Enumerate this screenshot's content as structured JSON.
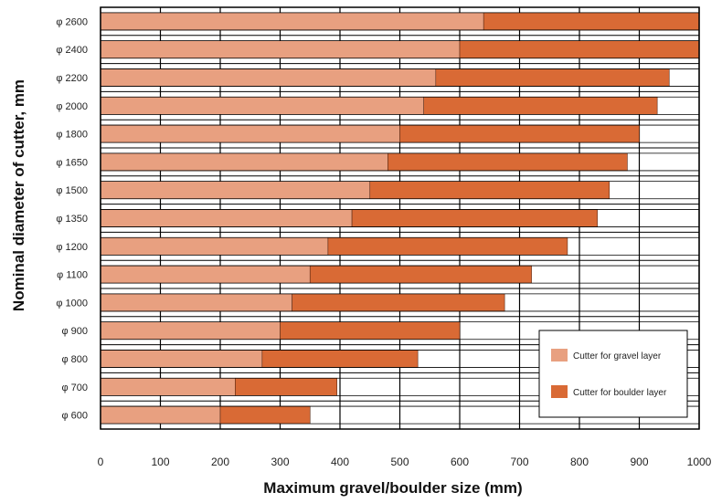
{
  "chart_data": {
    "type": "bar",
    "orientation": "horizontal",
    "stacked": true,
    "title": "",
    "xlabel": "Maximum gravel/boulder size (mm)",
    "ylabel": "Nominal diameter of cutter, mm",
    "xlim": [
      0,
      1000
    ],
    "xticks": [
      "0",
      "100",
      "200",
      "300",
      "400",
      "500",
      "600",
      "700",
      "800",
      "900",
      "1000"
    ],
    "grid": true,
    "legend_position": "bottom-right",
    "categories": [
      "φ 2600",
      "φ 2400",
      "φ 2200",
      "φ 2000",
      "φ 1800",
      "φ 1650",
      "φ 1500",
      "φ 1350",
      "φ 1200",
      "φ 1100",
      "φ 1000",
      "φ 900",
      "φ 800",
      "φ 700",
      "φ 600"
    ],
    "series": [
      {
        "name": "Cutter for gravel layer",
        "color": "#e8a080",
        "values": [
          640,
          600,
          560,
          540,
          500,
          480,
          450,
          420,
          380,
          350,
          320,
          300,
          270,
          225,
          200
        ]
      },
      {
        "name": "Cutter for boulder layer",
        "color": "#d96a35",
        "values": [
          360,
          400,
          390,
          390,
          400,
          400,
          400,
          410,
          400,
          370,
          355,
          300,
          260,
          170,
          150
        ]
      }
    ],
    "colors": {
      "gravel": "#e8a080",
      "boulder": "#d96a35",
      "boulder_end": "#c8633a",
      "grid": "#000000"
    }
  }
}
